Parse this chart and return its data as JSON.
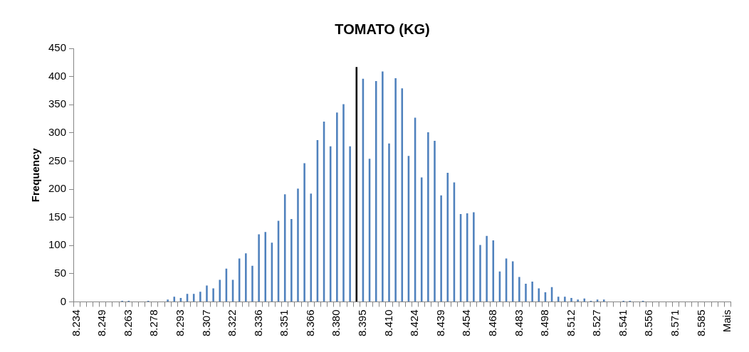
{
  "chart_data": {
    "type": "bar",
    "title": "TOMATO (KG)",
    "ylabel": "Frequency",
    "categories": [
      "8.234",
      null,
      null,
      null,
      "8.249",
      null,
      null,
      null,
      "8.263",
      null,
      null,
      null,
      "8.278",
      null,
      null,
      null,
      "8.293",
      null,
      null,
      null,
      "8.307",
      null,
      null,
      null,
      "8.322",
      null,
      null,
      null,
      "8.336",
      null,
      null,
      null,
      "8.351",
      null,
      null,
      null,
      "8.366",
      null,
      null,
      null,
      "8.380",
      null,
      null,
      null,
      "8.395",
      null,
      null,
      null,
      "8.410",
      null,
      null,
      null,
      "8.424",
      null,
      null,
      null,
      "8.439",
      null,
      null,
      null,
      "8.454",
      null,
      null,
      null,
      "8.468",
      null,
      null,
      null,
      "8.483",
      null,
      null,
      null,
      "8.498",
      null,
      null,
      null,
      "8.512",
      null,
      null,
      null,
      "8.527",
      null,
      null,
      null,
      "8.541",
      null,
      null,
      null,
      "8.556",
      null,
      null,
      null,
      "8.571",
      null,
      null,
      null,
      "8.585",
      null,
      null,
      null,
      "Mais"
    ],
    "values": [
      0,
      0,
      0,
      0,
      0,
      0,
      0,
      2,
      2,
      0,
      0,
      2,
      0,
      0,
      4,
      9,
      7,
      14,
      14,
      18,
      29,
      24,
      39,
      59,
      39,
      77,
      86,
      64,
      120,
      124,
      105,
      144,
      191,
      147,
      201,
      246,
      192,
      287,
      320,
      276,
      336,
      351,
      276,
      417,
      396,
      254,
      392,
      409,
      281,
      397,
      379,
      259,
      327,
      221,
      301,
      286,
      189,
      229,
      212,
      156,
      157,
      159,
      101,
      117,
      109,
      54,
      77,
      72,
      44,
      32,
      36,
      24,
      17,
      26,
      9,
      9,
      7,
      4,
      6,
      2,
      4,
      4,
      0,
      0,
      2,
      2,
      0,
      2,
      0,
      0,
      0,
      0,
      0,
      0,
      0,
      0,
      0,
      0,
      0,
      0,
      0
    ],
    "colors": [
      "#4f81bd",
      "#4f81bd",
      "#4f81bd",
      "#4f81bd",
      "#4f81bd",
      "#4f81bd",
      "#4f81bd",
      "#4f81bd",
      "#4f81bd",
      "#4f81bd",
      "#4f81bd",
      "#4f81bd",
      "#4f81bd",
      "#4f81bd",
      "#4f81bd",
      "#4f81bd",
      "#4f81bd",
      "#4f81bd",
      "#4f81bd",
      "#4f81bd",
      "#4f81bd",
      "#4f81bd",
      "#4f81bd",
      "#4f81bd",
      "#4f81bd",
      "#4f81bd",
      "#4f81bd",
      "#4f81bd",
      "#4f81bd",
      "#4f81bd",
      "#4f81bd",
      "#4f81bd",
      "#4f81bd",
      "#4f81bd",
      "#4f81bd",
      "#4f81bd",
      "#4f81bd",
      "#4f81bd",
      "#4f81bd",
      "#4f81bd",
      "#4f81bd",
      "#4f81bd",
      "#4f81bd",
      "#000000",
      "#4f81bd",
      "#4f81bd",
      "#4f81bd",
      "#4f81bd",
      "#4f81bd",
      "#4f81bd",
      "#4f81bd",
      "#4f81bd",
      "#4f81bd",
      "#4f81bd",
      "#4f81bd",
      "#4f81bd",
      "#4f81bd",
      "#4f81bd",
      "#4f81bd",
      "#4f81bd",
      "#4f81bd",
      "#4f81bd",
      "#4f81bd",
      "#4f81bd",
      "#4f81bd",
      "#4f81bd",
      "#4f81bd",
      "#4f81bd",
      "#4f81bd",
      "#4f81bd",
      "#4f81bd",
      "#4f81bd",
      "#4f81bd",
      "#4f81bd",
      "#4f81bd",
      "#4f81bd",
      "#4f81bd",
      "#4f81bd",
      "#4f81bd",
      "#4f81bd",
      "#4f81bd",
      "#4f81bd",
      "#4f81bd",
      "#4f81bd",
      "#4f81bd",
      "#4f81bd",
      "#4f81bd",
      "#4f81bd",
      "#4f81bd",
      "#4f81bd",
      "#4f81bd",
      "#4f81bd",
      "#4f81bd",
      "#4f81bd",
      "#4f81bd",
      "#4f81bd",
      "#4f81bd",
      "#4f81bd",
      "#4f81bd",
      "#4f81bd",
      "#4f81bd"
    ],
    "ylim": [
      0,
      450
    ],
    "yticks": [
      0,
      50,
      100,
      150,
      200,
      250,
      300,
      350,
      400,
      450
    ],
    "grid": false,
    "legend": false
  }
}
